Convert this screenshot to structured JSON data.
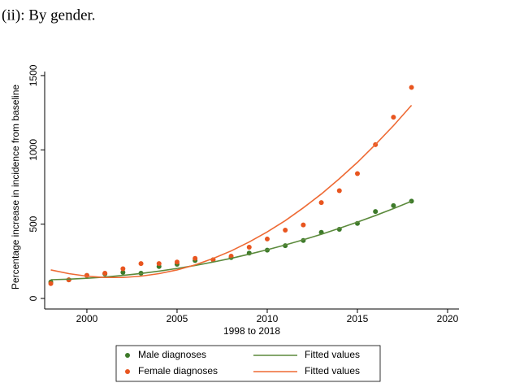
{
  "chart_data": {
    "type": "scatter",
    "title": "(ii): By gender.",
    "x_label": "1998 to 2018",
    "y_label": "Percentage increase in incidence from baseline",
    "x": [
      1998,
      1999,
      2000,
      2001,
      2002,
      2003,
      2004,
      2005,
      2006,
      2007,
      2008,
      2009,
      2010,
      2011,
      2012,
      2013,
      2014,
      2015,
      2016,
      2017,
      2018
    ],
    "series": [
      {
        "name": "Male diagnoses",
        "type": "scatter",
        "color": "#3d7a2a",
        "values": [
          110,
          125,
          155,
          165,
          175,
          170,
          215,
          230,
          255,
          260,
          275,
          305,
          325,
          355,
          390,
          445,
          465,
          505,
          585,
          625,
          655
        ]
      },
      {
        "name": "Female diagnoses",
        "type": "scatter",
        "color": "#e8551f",
        "values": [
          100,
          125,
          155,
          170,
          200,
          235,
          235,
          245,
          270,
          260,
          285,
          345,
          400,
          460,
          495,
          645,
          725,
          840,
          1035,
          1220,
          1420
        ]
      },
      {
        "name": "Fitted values",
        "type": "line",
        "color": "#5b8a3c",
        "values": [
          126,
          130,
          136,
          144,
          155,
          168,
          184,
          202,
          222,
          245,
          270,
          298,
          328,
          360,
          395,
          432,
          472,
          514,
          558,
          605,
          654
        ]
      },
      {
        "name": "Fitted values",
        "type": "line",
        "color": "#ee6a34",
        "values": [
          192,
          167,
          150,
          141,
          141,
          150,
          167,
          192,
          226,
          269,
          320,
          380,
          448,
          524,
          610,
          703,
          806,
          916,
          1036,
          1163,
          1300
        ]
      }
    ],
    "xlim": [
      1997.66,
      2020.63
    ],
    "xticks": [
      2000,
      2005,
      2010,
      2015,
      2020
    ],
    "ylim": [
      -71,
      1527
    ],
    "yticks": [
      0,
      500,
      1000,
      1500
    ],
    "grid": false
  }
}
